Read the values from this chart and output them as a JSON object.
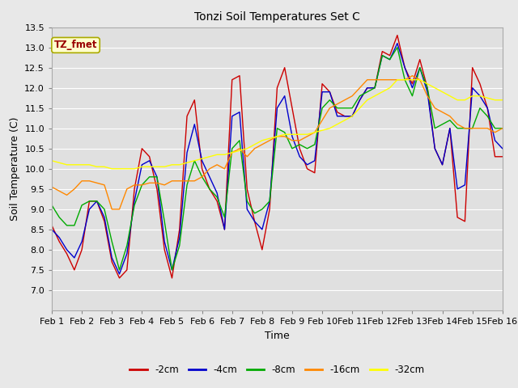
{
  "title": "Tonzi Soil Temperatures Set C",
  "xlabel": "Time",
  "ylabel": "Soil Temperature (C)",
  "ylim": [
    6.5,
    13.5
  ],
  "xlim": [
    0,
    15
  ],
  "xtick_labels": [
    "Feb 1",
    "Feb 2",
    "Feb 3",
    "Feb 4",
    "Feb 5",
    "Feb 6",
    "Feb 7",
    "Feb 8",
    "Feb 9",
    "Feb 10",
    "Feb 11",
    "Feb 12",
    "Feb 13",
    "Feb 14",
    "Feb 15",
    "Feb 16"
  ],
  "ytick_values": [
    7.0,
    7.5,
    8.0,
    8.5,
    9.0,
    9.5,
    10.0,
    10.5,
    11.0,
    11.5,
    12.0,
    12.5,
    13.0,
    13.5
  ],
  "series": {
    "-2cm": {
      "color": "#cc0000",
      "x": [
        0,
        0.25,
        0.5,
        0.75,
        1.0,
        1.25,
        1.5,
        1.75,
        2.0,
        2.25,
        2.5,
        2.75,
        3.0,
        3.25,
        3.5,
        3.75,
        4.0,
        4.25,
        4.5,
        4.75,
        5.0,
        5.25,
        5.5,
        5.75,
        6.0,
        6.25,
        6.5,
        6.75,
        7.0,
        7.25,
        7.5,
        7.75,
        8.0,
        8.25,
        8.5,
        8.75,
        9.0,
        9.25,
        9.5,
        9.75,
        10.0,
        10.25,
        10.5,
        10.75,
        11.0,
        11.25,
        11.5,
        11.75,
        12.0,
        12.25,
        12.5,
        12.75,
        13.0,
        13.25,
        13.5,
        13.75,
        14.0,
        14.25,
        14.5,
        14.75,
        15.0
      ],
      "y": [
        8.6,
        8.2,
        7.9,
        7.5,
        8.0,
        9.2,
        9.2,
        8.7,
        7.7,
        7.3,
        7.5,
        9.5,
        10.5,
        10.3,
        9.5,
        8.0,
        7.3,
        8.5,
        11.3,
        11.7,
        10.0,
        9.5,
        9.2,
        8.5,
        12.2,
        12.3,
        9.5,
        8.7,
        8.0,
        9.0,
        12.0,
        12.5,
        11.5,
        10.5,
        10.0,
        9.9,
        12.1,
        11.9,
        11.4,
        11.3,
        11.3,
        11.7,
        12.0,
        12.0,
        12.9,
        12.8,
        13.3,
        12.5,
        12.1,
        12.7,
        12.0,
        10.5,
        10.1,
        11.0,
        8.8,
        8.7,
        12.5,
        12.1,
        11.5,
        10.3,
        10.3
      ]
    },
    "-4cm": {
      "color": "#0000cc",
      "x": [
        0,
        0.25,
        0.5,
        0.75,
        1.0,
        1.25,
        1.5,
        1.75,
        2.0,
        2.25,
        2.5,
        2.75,
        3.0,
        3.25,
        3.5,
        3.75,
        4.0,
        4.25,
        4.5,
        4.75,
        5.0,
        5.25,
        5.5,
        5.75,
        6.0,
        6.25,
        6.5,
        6.75,
        7.0,
        7.25,
        7.5,
        7.75,
        8.0,
        8.25,
        8.5,
        8.75,
        9.0,
        9.25,
        9.5,
        9.75,
        10.0,
        10.25,
        10.5,
        10.75,
        11.0,
        11.25,
        11.5,
        11.75,
        12.0,
        12.25,
        12.5,
        12.75,
        13.0,
        13.25,
        13.5,
        13.75,
        14.0,
        14.25,
        14.5,
        14.75,
        15.0
      ],
      "y": [
        8.5,
        8.3,
        8.0,
        7.8,
        8.2,
        9.0,
        9.2,
        8.8,
        7.8,
        7.4,
        7.9,
        9.2,
        10.1,
        10.2,
        9.8,
        8.2,
        7.5,
        8.3,
        10.4,
        11.1,
        10.2,
        9.8,
        9.4,
        8.5,
        11.3,
        11.4,
        9.0,
        8.7,
        8.5,
        9.2,
        11.5,
        11.8,
        10.8,
        10.3,
        10.1,
        10.2,
        11.9,
        11.9,
        11.3,
        11.3,
        11.3,
        11.7,
        12.0,
        12.0,
        12.8,
        12.7,
        13.1,
        12.5,
        12.0,
        12.5,
        11.9,
        10.5,
        10.1,
        11.0,
        9.5,
        9.6,
        12.0,
        11.8,
        11.5,
        10.7,
        10.5
      ]
    },
    "-8cm": {
      "color": "#00aa00",
      "x": [
        0,
        0.25,
        0.5,
        0.75,
        1.0,
        1.25,
        1.5,
        1.75,
        2.0,
        2.25,
        2.5,
        2.75,
        3.0,
        3.25,
        3.5,
        3.75,
        4.0,
        4.25,
        4.5,
        4.75,
        5.0,
        5.25,
        5.5,
        5.75,
        6.0,
        6.25,
        6.5,
        6.75,
        7.0,
        7.25,
        7.5,
        7.75,
        8.0,
        8.25,
        8.5,
        8.75,
        9.0,
        9.25,
        9.5,
        9.75,
        10.0,
        10.25,
        10.5,
        10.75,
        11.0,
        11.25,
        11.5,
        11.75,
        12.0,
        12.25,
        12.5,
        12.75,
        13.0,
        13.25,
        13.5,
        13.75,
        14.0,
        14.25,
        14.5,
        14.75,
        15.0
      ],
      "y": [
        9.1,
        8.8,
        8.6,
        8.6,
        9.1,
        9.2,
        9.2,
        9.0,
        8.2,
        7.5,
        8.1,
        9.1,
        9.6,
        9.8,
        9.8,
        8.7,
        7.5,
        8.1,
        9.6,
        10.2,
        9.8,
        9.5,
        9.3,
        8.8,
        10.5,
        10.7,
        9.2,
        8.9,
        9.0,
        9.2,
        11.0,
        10.9,
        10.5,
        10.6,
        10.5,
        10.6,
        11.5,
        11.7,
        11.5,
        11.5,
        11.5,
        11.8,
        11.9,
        12.0,
        12.8,
        12.7,
        13.0,
        12.2,
        11.8,
        12.5,
        12.0,
        11.0,
        11.1,
        11.2,
        11.0,
        11.0,
        11.0,
        11.5,
        11.3,
        11.0,
        11.0
      ]
    },
    "-16cm": {
      "color": "#ff8800",
      "x": [
        0,
        0.25,
        0.5,
        0.75,
        1.0,
        1.25,
        1.5,
        1.75,
        2.0,
        2.25,
        2.5,
        2.75,
        3.0,
        3.25,
        3.5,
        3.75,
        4.0,
        4.25,
        4.5,
        4.75,
        5.0,
        5.25,
        5.5,
        5.75,
        6.0,
        6.25,
        6.5,
        6.75,
        7.0,
        7.25,
        7.5,
        7.75,
        8.0,
        8.25,
        8.5,
        8.75,
        9.0,
        9.25,
        9.5,
        9.75,
        10.0,
        10.25,
        10.5,
        10.75,
        11.0,
        11.25,
        11.5,
        11.75,
        12.0,
        12.25,
        12.5,
        12.75,
        13.0,
        13.25,
        13.5,
        13.75,
        14.0,
        14.25,
        14.5,
        14.75,
        15.0
      ],
      "y": [
        9.55,
        9.45,
        9.35,
        9.5,
        9.7,
        9.7,
        9.65,
        9.6,
        9.0,
        9.0,
        9.5,
        9.6,
        9.6,
        9.65,
        9.65,
        9.6,
        9.7,
        9.7,
        9.7,
        9.7,
        9.8,
        10.0,
        10.1,
        10.0,
        10.4,
        10.5,
        10.3,
        10.5,
        10.6,
        10.7,
        10.8,
        10.8,
        10.7,
        10.7,
        10.8,
        10.9,
        11.2,
        11.5,
        11.6,
        11.7,
        11.8,
        12.0,
        12.2,
        12.2,
        12.2,
        12.2,
        12.2,
        12.2,
        12.3,
        12.2,
        11.8,
        11.5,
        11.4,
        11.3,
        11.1,
        11.0,
        11.0,
        11.0,
        11.0,
        10.9,
        11.0
      ]
    },
    "-32cm": {
      "color": "#ffff00",
      "x": [
        0,
        0.25,
        0.5,
        0.75,
        1.0,
        1.25,
        1.5,
        1.75,
        2.0,
        2.25,
        2.5,
        2.75,
        3.0,
        3.25,
        3.5,
        3.75,
        4.0,
        4.25,
        4.5,
        4.75,
        5.0,
        5.25,
        5.5,
        5.75,
        6.0,
        6.25,
        6.5,
        6.75,
        7.0,
        7.25,
        7.5,
        7.75,
        8.0,
        8.25,
        8.5,
        8.75,
        9.0,
        9.25,
        9.5,
        9.75,
        10.0,
        10.25,
        10.5,
        10.75,
        11.0,
        11.25,
        11.5,
        11.75,
        12.0,
        12.25,
        12.5,
        12.75,
        13.0,
        13.25,
        13.5,
        13.75,
        14.0,
        14.25,
        14.5,
        14.75,
        15.0
      ],
      "y": [
        10.2,
        10.15,
        10.1,
        10.1,
        10.1,
        10.1,
        10.05,
        10.05,
        10.0,
        10.0,
        10.0,
        10.0,
        10.05,
        10.05,
        10.05,
        10.05,
        10.1,
        10.1,
        10.15,
        10.2,
        10.25,
        10.3,
        10.35,
        10.35,
        10.4,
        10.45,
        10.5,
        10.6,
        10.7,
        10.75,
        10.8,
        10.85,
        10.85,
        10.85,
        10.85,
        10.9,
        10.95,
        11.0,
        11.1,
        11.2,
        11.3,
        11.5,
        11.7,
        11.8,
        11.9,
        12.0,
        12.2,
        12.2,
        12.2,
        12.2,
        12.1,
        12.0,
        11.9,
        11.8,
        11.7,
        11.7,
        11.8,
        11.8,
        11.75,
        11.7,
        11.7
      ]
    }
  },
  "annotation_text": "TZ_fmet",
  "annotation_color": "#990000",
  "annotation_bg": "#ffffcc",
  "annotation_edge": "#aaaa00",
  "fig_bg": "#e8e8e8",
  "plot_bg": "#e0e0e0",
  "legend_labels": [
    "-2cm",
    "-4cm",
    "-8cm",
    "-16cm",
    "-32cm"
  ],
  "legend_colors": [
    "#cc0000",
    "#0000cc",
    "#00aa00",
    "#ff8800",
    "#ffff00"
  ],
  "grid_color": "#ffffff",
  "title_fontsize": 10,
  "axis_fontsize": 9,
  "tick_fontsize": 8
}
